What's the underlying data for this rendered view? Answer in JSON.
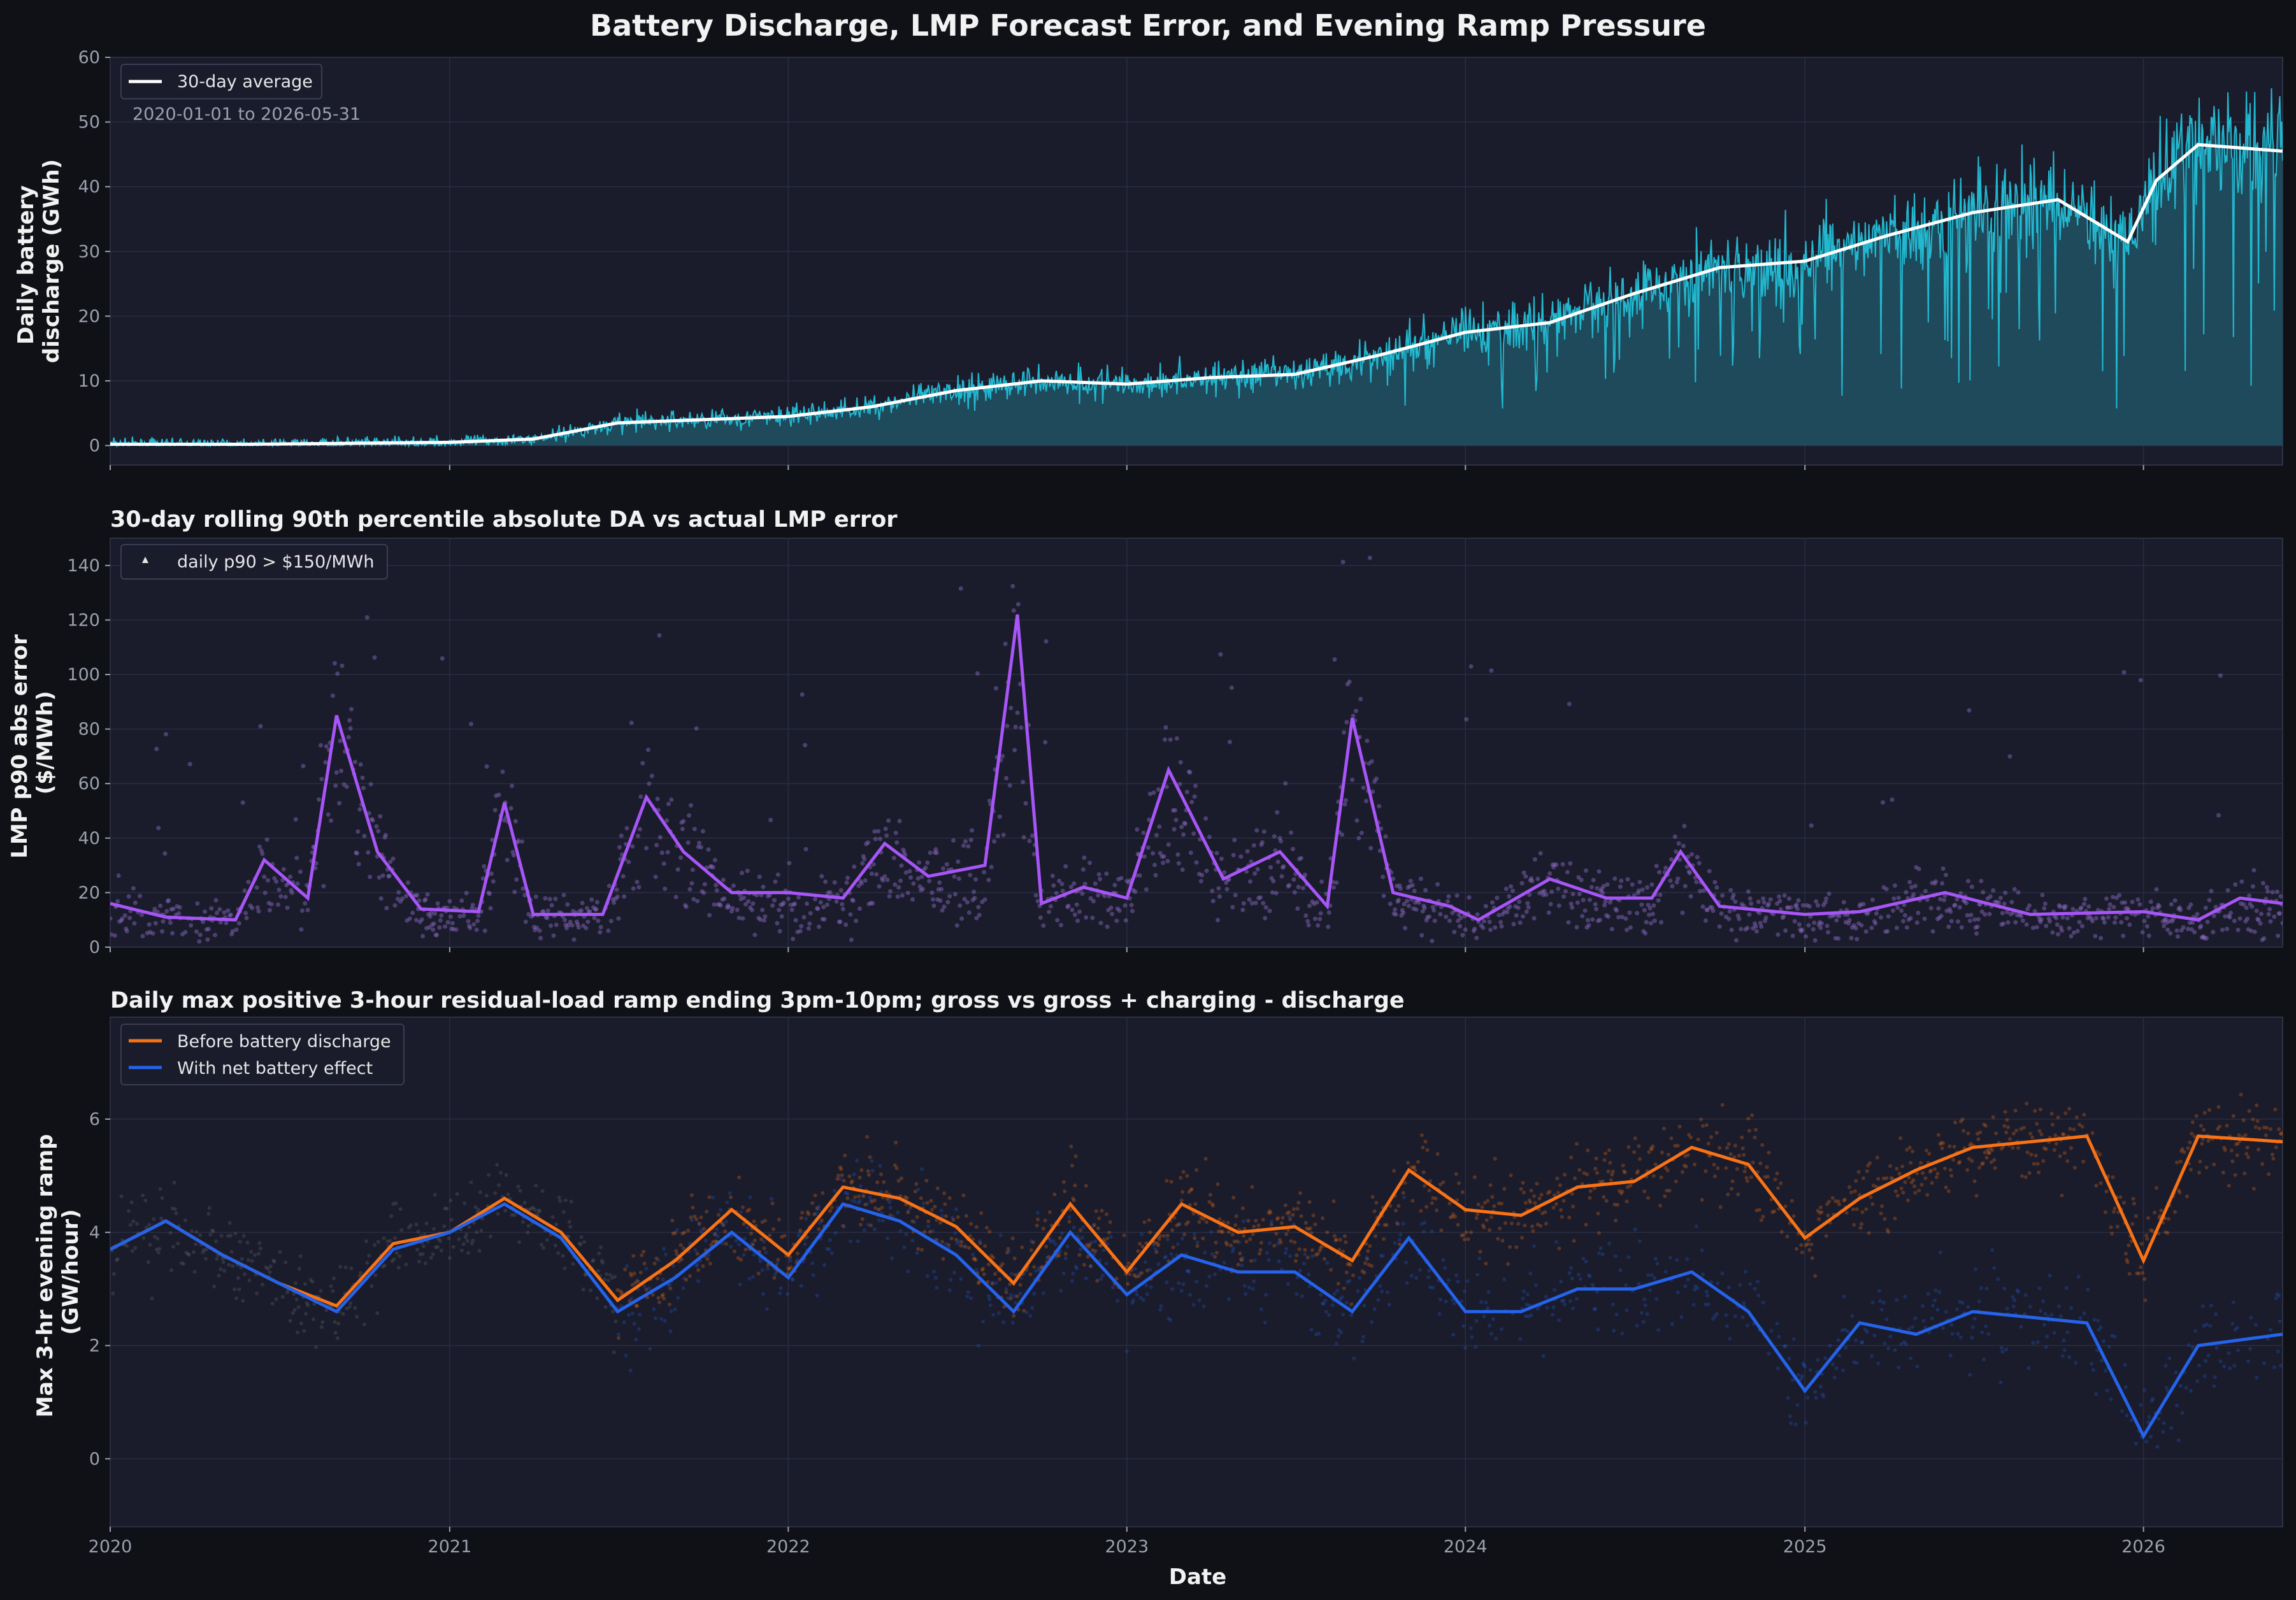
{
  "title": "Battery Discharge, LMP Forecast Error, and Evening Ramp Pressure",
  "colors": {
    "figure_bg": "#0f1117",
    "panel_bg": "#1a1c2c",
    "grid": "#2a2d40",
    "discharge_daily": "#22b8cf",
    "discharge_fill": "#1e4a5c",
    "discharge_avg": "#ffffff",
    "lmp_line": "#a855f7",
    "lmp_points": "#8b6bc2",
    "ramp_before": "#f97316",
    "ramp_with": "#2563eb",
    "ramp_points_gray": "#6b6b6b"
  },
  "chart_data": [
    {
      "type": "area",
      "ylabel": "Daily battery\ndischarge (GWh)",
      "ylim": [
        -3,
        60
      ],
      "yticks": [
        0,
        10,
        20,
        30,
        40,
        50,
        60
      ],
      "xlim": [
        "2020-01-01",
        "2026-05-31"
      ],
      "annotation": "2020-01-01 to 2026-05-31",
      "legend": [
        {
          "name": "30-day average"
        }
      ],
      "legend_position": "top-left",
      "grid": true,
      "series": [
        {
          "name": "30-day average",
          "x": [
            "2020-01-01",
            "2020-06-01",
            "2021-01-01",
            "2021-04-01",
            "2021-07-01",
            "2021-10-01",
            "2022-01-01",
            "2022-04-01",
            "2022-07-01",
            "2022-10-01",
            "2023-01-01",
            "2023-04-01",
            "2023-07-01",
            "2023-10-01",
            "2024-01-01",
            "2024-04-01",
            "2024-07-01",
            "2024-10-01",
            "2025-01-01",
            "2025-04-01",
            "2025-07-01",
            "2025-10-01",
            "2025-12-15",
            "2026-01-15",
            "2026-03-01",
            "2026-05-31"
          ],
          "values": [
            0.2,
            0.2,
            0.5,
            1.0,
            3.5,
            4.0,
            4.5,
            6.0,
            8.5,
            10.0,
            9.5,
            10.5,
            11.0,
            14.0,
            17.5,
            19.0,
            23.5,
            27.5,
            28.5,
            32.5,
            36.0,
            38.0,
            31.5,
            41.0,
            46.5,
            45.5
          ]
        }
      ]
    },
    {
      "type": "line",
      "title": "30-day rolling 90th percentile absolute DA vs actual LMP error",
      "ylabel": "LMP p90 abs error\n($/MWh)",
      "ylim": [
        0,
        150
      ],
      "yticks": [
        0,
        20,
        40,
        60,
        80,
        100,
        120,
        140
      ],
      "xlim": [
        "2020-01-01",
        "2026-05-31"
      ],
      "legend": [
        {
          "name": "daily p90 > $150/MWh"
        }
      ],
      "legend_position": "top-left",
      "grid": true,
      "series": [
        {
          "name": "30-day rolling p90",
          "x": [
            "2020-01-01",
            "2020-03-01",
            "2020-05-15",
            "2020-06-15",
            "2020-08-01",
            "2020-09-01",
            "2020-10-15",
            "2020-12-01",
            "2021-02-01",
            "2021-03-01",
            "2021-04-01",
            "2021-06-15",
            "2021-08-01",
            "2021-09-10",
            "2021-11-01",
            "2022-01-01",
            "2022-03-01",
            "2022-04-15",
            "2022-06-01",
            "2022-08-01",
            "2022-09-05",
            "2022-10-01",
            "2022-11-15",
            "2023-01-01",
            "2023-02-15",
            "2023-04-15",
            "2023-06-15",
            "2023-08-05",
            "2023-09-01",
            "2023-10-15",
            "2023-12-15",
            "2024-01-15",
            "2024-04-01",
            "2024-06-01",
            "2024-07-20",
            "2024-08-20",
            "2024-10-01",
            "2025-01-01",
            "2025-03-01",
            "2025-06-01",
            "2025-09-01",
            "2026-01-01",
            "2026-03-01",
            "2026-04-15",
            "2026-05-31"
          ],
          "values": [
            16,
            11,
            10,
            32,
            18,
            85,
            35,
            14,
            13,
            53,
            12,
            12,
            55,
            35,
            20,
            20,
            18,
            38,
            26,
            30,
            122,
            16,
            22,
            18,
            65,
            25,
            35,
            15,
            84,
            20,
            15,
            10,
            25,
            18,
            18,
            35,
            15,
            12,
            13,
            20,
            12,
            13,
            10,
            18,
            16
          ]
        }
      ]
    },
    {
      "type": "line",
      "title": "Daily max positive 3-hour residual-load ramp ending 3pm-10pm; gross vs gross + charging - discharge",
      "ylabel": "Max 3-hr evening ramp\n(GW/hour)",
      "xlabel": "Date",
      "ylim": [
        -1.2,
        7.8
      ],
      "yticks": [
        0,
        2,
        4,
        6
      ],
      "xlim": [
        "2020-01-01",
        "2026-05-31"
      ],
      "xticks": [
        "2020",
        "2021",
        "2022",
        "2023",
        "2024",
        "2025",
        "2026"
      ],
      "legend_position": "top-left",
      "grid": true,
      "series": [
        {
          "name": "Before battery discharge",
          "x": [
            "2020-01-01",
            "2020-03-01",
            "2020-05-01",
            "2020-07-01",
            "2020-09-01",
            "2020-11-01",
            "2021-01-01",
            "2021-03-01",
            "2021-05-01",
            "2021-07-01",
            "2021-09-01",
            "2021-11-01",
            "2022-01-01",
            "2022-03-01",
            "2022-05-01",
            "2022-07-01",
            "2022-09-01",
            "2022-11-01",
            "2023-01-01",
            "2023-03-01",
            "2023-05-01",
            "2023-07-01",
            "2023-09-01",
            "2023-11-01",
            "2024-01-01",
            "2024-03-01",
            "2024-05-01",
            "2024-07-01",
            "2024-09-01",
            "2024-11-01",
            "2025-01-01",
            "2025-03-01",
            "2025-05-01",
            "2025-07-01",
            "2025-09-01",
            "2025-11-01",
            "2026-01-01",
            "2026-03-01",
            "2026-05-31"
          ],
          "values": [
            3.7,
            4.2,
            3.6,
            3.1,
            2.7,
            3.8,
            4.0,
            4.6,
            4.0,
            2.8,
            3.5,
            4.4,
            3.6,
            4.8,
            4.6,
            4.1,
            3.1,
            4.5,
            3.3,
            4.5,
            4.0,
            4.1,
            3.5,
            5.1,
            4.4,
            4.3,
            4.8,
            4.9,
            5.5,
            5.2,
            3.9,
            4.6,
            5.1,
            5.5,
            5.6,
            5.7,
            3.5,
            5.7,
            5.6
          ]
        },
        {
          "name": "With net battery effect",
          "x": [
            "2020-01-01",
            "2020-03-01",
            "2020-05-01",
            "2020-07-01",
            "2020-09-01",
            "2020-11-01",
            "2021-01-01",
            "2021-03-01",
            "2021-05-01",
            "2021-07-01",
            "2021-09-01",
            "2021-11-01",
            "2022-01-01",
            "2022-03-01",
            "2022-05-01",
            "2022-07-01",
            "2022-09-01",
            "2022-11-01",
            "2023-01-01",
            "2023-03-01",
            "2023-05-01",
            "2023-07-01",
            "2023-09-01",
            "2023-11-01",
            "2024-01-01",
            "2024-03-01",
            "2024-05-01",
            "2024-07-01",
            "2024-09-01",
            "2024-11-01",
            "2025-01-01",
            "2025-03-01",
            "2025-05-01",
            "2025-07-01",
            "2025-09-01",
            "2025-11-01",
            "2026-01-01",
            "2026-03-01",
            "2026-05-31"
          ],
          "values": [
            3.7,
            4.2,
            3.6,
            3.1,
            2.6,
            3.7,
            4.0,
            4.5,
            3.9,
            2.6,
            3.2,
            4.0,
            3.2,
            4.5,
            4.2,
            3.6,
            2.6,
            4.0,
            2.9,
            3.6,
            3.3,
            3.3,
            2.6,
            3.9,
            2.6,
            2.6,
            3.0,
            3.0,
            3.3,
            2.6,
            1.2,
            2.4,
            2.2,
            2.6,
            2.5,
            2.4,
            0.4,
            2.0,
            2.2
          ]
        }
      ]
    }
  ]
}
